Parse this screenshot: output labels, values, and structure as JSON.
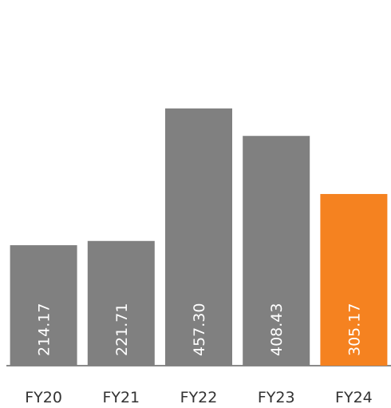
{
  "chart_data": {
    "type": "bar",
    "categories": [
      "FY20",
      "FY21",
      "FY22",
      "FY23",
      "FY24"
    ],
    "values": [
      214.17,
      221.71,
      457.3,
      408.43,
      305.17
    ],
    "value_labels": [
      "214.17",
      "221.71",
      "457.30",
      "408.43",
      "305.17"
    ],
    "colors": [
      "#808080",
      "#808080",
      "#808080",
      "#808080",
      "#f58220"
    ],
    "ylim": [
      0,
      650
    ]
  }
}
